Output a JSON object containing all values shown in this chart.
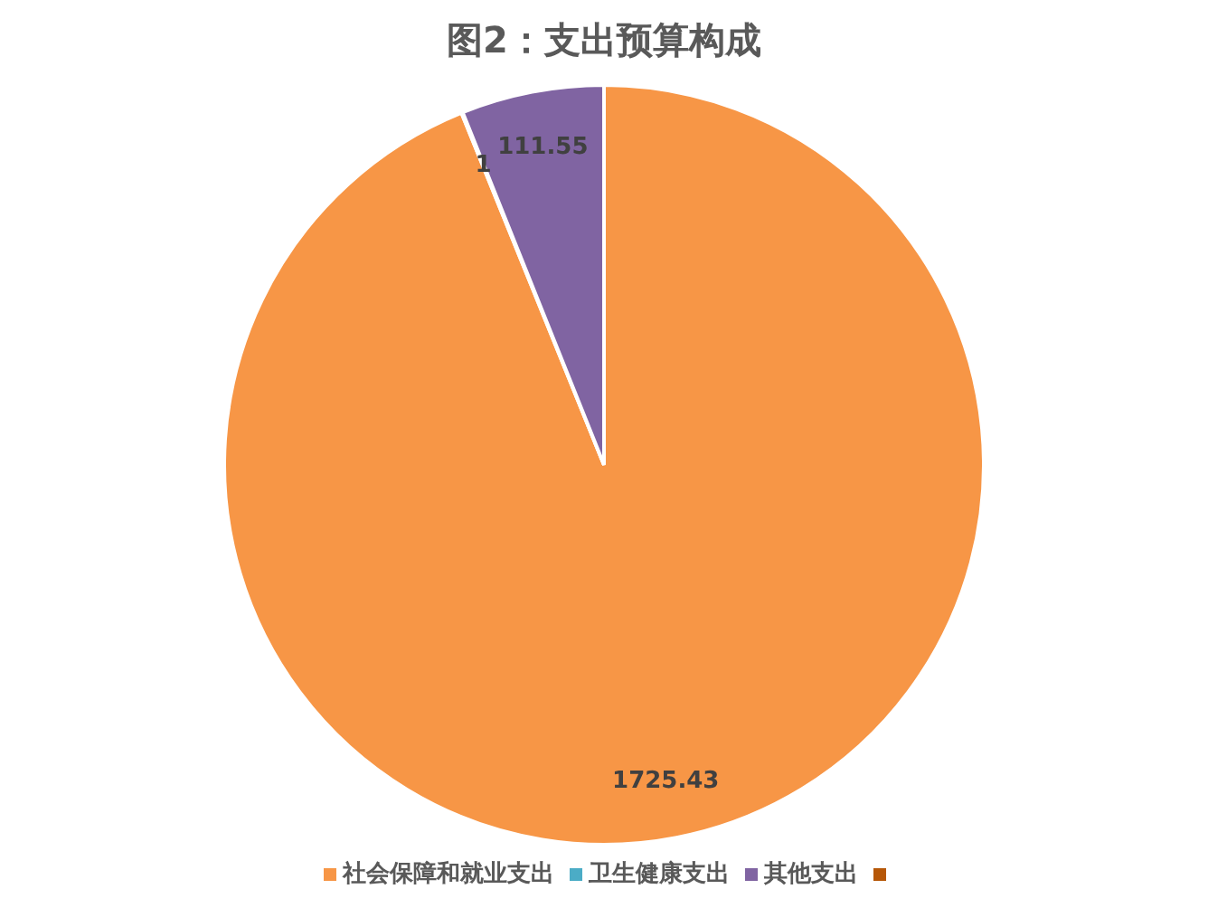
{
  "chart_data": {
    "type": "pie",
    "title": "图2：支出预算构成",
    "categories": [
      "社会保障和就业支出",
      "卫生健康支出",
      "其他支出",
      null
    ],
    "values": [
      1725.43,
      1,
      111.55,
      0
    ],
    "colors": [
      "#f79646",
      "#4bacc6",
      "#8064a2",
      "#b65708"
    ],
    "value_labels": [
      "1725.43",
      "1",
      "111.55",
      null
    ],
    "legend": "bottom"
  }
}
